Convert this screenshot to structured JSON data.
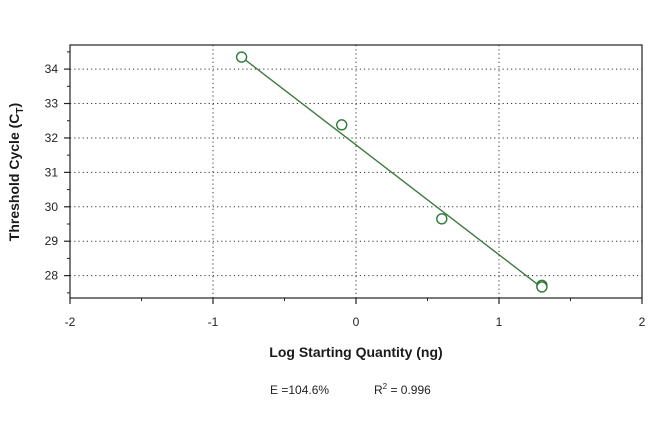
{
  "chart_data": {
    "type": "scatter",
    "xlabel": "Log Starting Quantity (ng)",
    "ylabel": "Threshold Cycle (C",
    "ylabel_sub": "T",
    "ylabel_close": ")",
    "xlim": [
      -2,
      2
    ],
    "ylim": [
      27.35,
      34.7
    ],
    "x_ticks": [
      -2,
      -1,
      0,
      1,
      2
    ],
    "x_tick_labels": [
      "-2",
      "-1",
      "0",
      "1",
      "2"
    ],
    "y_ticks": [
      28,
      29,
      30,
      31,
      32,
      33,
      34
    ],
    "y_tick_labels": [
      "28",
      "29",
      "30",
      "31",
      "32",
      "33",
      "34"
    ],
    "grid": true,
    "series": [
      {
        "points": [
          {
            "x": -0.8,
            "y": 34.35
          },
          {
            "x": -0.1,
            "y": 32.38
          },
          {
            "x": 0.6,
            "y": 29.65
          },
          {
            "x": 1.3,
            "y": 27.72
          },
          {
            "x": 1.3,
            "y": 27.67
          }
        ],
        "color": "#2f7a3a",
        "marker": "open-circle"
      }
    ],
    "fit_line": {
      "x": [
        -0.8,
        1.3
      ],
      "y": [
        34.35,
        27.65
      ],
      "color": "#3c7a3e"
    },
    "annotations": {
      "efficiency": "E =104.6%",
      "r2_label": "R",
      "r2_sup": "2",
      "r2_value": " = 0.996"
    }
  }
}
